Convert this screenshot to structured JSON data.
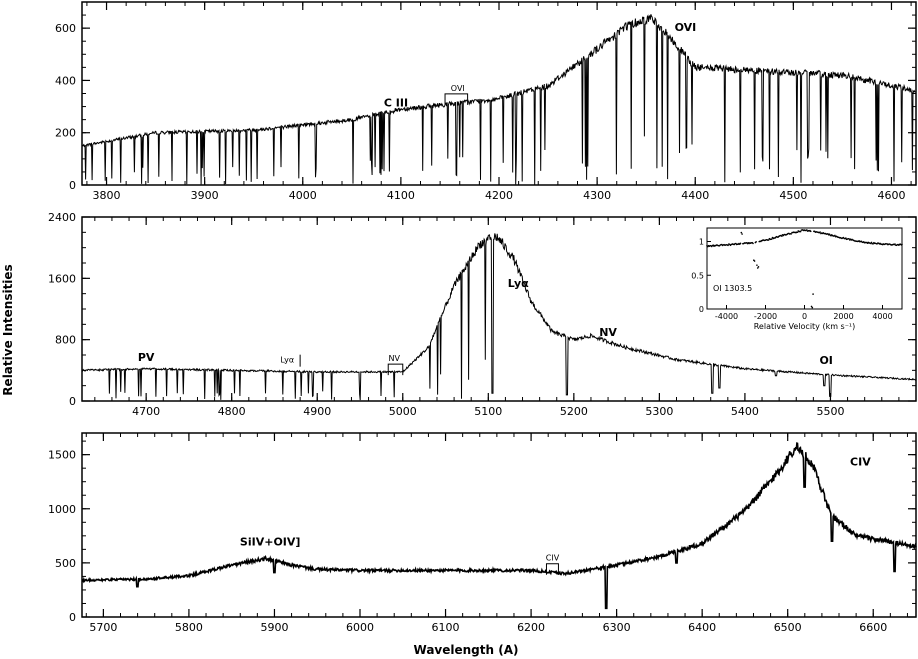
{
  "chart_data": [
    {
      "id": "panel-1",
      "type": "line",
      "xlim": [
        3775,
        4625
      ],
      "ylim": [
        0,
        700
      ],
      "xticks": [
        3800,
        3900,
        4000,
        4100,
        4200,
        4300,
        4400,
        4500,
        4600
      ],
      "yticks": [
        0,
        200,
        400,
        600
      ],
      "grid": false,
      "continuum": [
        [
          3775,
          150
        ],
        [
          3850,
          200
        ],
        [
          3950,
          210
        ],
        [
          4050,
          250
        ],
        [
          4100,
          290
        ],
        [
          4150,
          310
        ],
        [
          4200,
          330
        ],
        [
          4250,
          380
        ],
        [
          4300,
          520
        ],
        [
          4330,
          610
        ],
        [
          4355,
          640
        ],
        [
          4375,
          560
        ],
        [
          4400,
          450
        ],
        [
          4450,
          440
        ],
        [
          4500,
          430
        ],
        [
          4550,
          420
        ],
        [
          4625,
          360
        ]
      ],
      "absorption_density": 0.55,
      "annotations": [
        {
          "text": "C III",
          "x": 4095,
          "y": 300
        },
        {
          "text": "OVI",
          "x": 4158,
          "y": 360,
          "small": true,
          "bracket": [
            4145,
            4168
          ]
        },
        {
          "text": "OVI",
          "x": 4390,
          "y": 590
        }
      ]
    },
    {
      "id": "panel-2",
      "type": "line",
      "xlim": [
        4625,
        5600
      ],
      "ylim": [
        0,
        2400
      ],
      "xticks": [
        4700,
        4800,
        4900,
        5000,
        5100,
        5200,
        5300,
        5400,
        5500
      ],
      "yticks": [
        0,
        800,
        1600,
        2400
      ],
      "grid": false,
      "continuum": [
        [
          4625,
          400
        ],
        [
          4700,
          420
        ],
        [
          4800,
          400
        ],
        [
          4900,
          380
        ],
        [
          5000,
          380
        ],
        [
          5030,
          700
        ],
        [
          5060,
          1500
        ],
        [
          5090,
          2050
        ],
        [
          5110,
          2150
        ],
        [
          5130,
          1850
        ],
        [
          5150,
          1300
        ],
        [
          5175,
          900
        ],
        [
          5200,
          800
        ],
        [
          5220,
          850
        ],
        [
          5260,
          700
        ],
        [
          5320,
          540
        ],
        [
          5400,
          420
        ],
        [
          5500,
          340
        ],
        [
          5600,
          280
        ]
      ],
      "absorption_density": 0.45,
      "absorption_end": 5110,
      "sharp_lines": [
        [
          5105,
          100
        ],
        [
          5192,
          80
        ],
        [
          5362,
          100
        ],
        [
          5370,
          170
        ],
        [
          5436,
          330
        ],
        [
          5493,
          200
        ],
        [
          5500,
          60
        ]
      ],
      "annotations": [
        {
          "text": "PV",
          "x": 4700,
          "y": 520
        },
        {
          "text": "Lyα",
          "x": 4865,
          "y": 500,
          "small": true,
          "marker": 4880
        },
        {
          "text": "NV",
          "x": 4990,
          "y": 520,
          "small": true,
          "bracket": [
            4983,
            5000
          ]
        },
        {
          "text": "Lyα",
          "x": 5135,
          "y": 1490
        },
        {
          "text": "NV",
          "x": 5240,
          "y": 850
        },
        {
          "text": "OI",
          "x": 5495,
          "y": 480
        }
      ],
      "inset": {
        "xlim": [
          -5000,
          5000
        ],
        "ylim": [
          0,
          1.2
        ],
        "xticks": [
          -4000,
          -2000,
          0,
          2000,
          4000
        ],
        "yticks": [
          0,
          0.5,
          1
        ],
        "xlabel": "Relative Velocity (km s⁻¹)",
        "label": "OI 1303.5",
        "profile": [
          [
            -5000,
            0.93
          ],
          [
            -4000,
            0.95
          ],
          [
            -3000,
            0.97
          ],
          [
            -2000,
            1.02
          ],
          [
            -1000,
            1.1
          ],
          [
            0,
            1.17
          ],
          [
            1000,
            1.12
          ],
          [
            2000,
            1.05
          ],
          [
            3000,
            0.99
          ],
          [
            4000,
            0.96
          ],
          [
            5000,
            0.95
          ]
        ],
        "dips": [
          [
            -3200,
            0.9
          ],
          [
            -2600,
            0.7
          ],
          [
            -2400,
            0.6
          ],
          [
            400,
            0.0
          ]
        ]
      }
    },
    {
      "id": "panel-3",
      "type": "line",
      "xlim": [
        5675,
        6650
      ],
      "ylim": [
        0,
        1700
      ],
      "xticks": [
        5700,
        5800,
        5900,
        6000,
        6100,
        6200,
        6300,
        6400,
        6500,
        6600
      ],
      "yticks": [
        0,
        500,
        1000,
        1500
      ],
      "grid": false,
      "continuum": [
        [
          5675,
          340
        ],
        [
          5750,
          350
        ],
        [
          5800,
          380
        ],
        [
          5850,
          480
        ],
        [
          5890,
          540
        ],
        [
          5920,
          480
        ],
        [
          5950,
          440
        ],
        [
          6000,
          430
        ],
        [
          6100,
          430
        ],
        [
          6200,
          430
        ],
        [
          6240,
          400
        ],
        [
          6300,
          480
        ],
        [
          6350,
          560
        ],
        [
          6400,
          680
        ],
        [
          6450,
          980
        ],
        [
          6490,
          1350
        ],
        [
          6510,
          1580
        ],
        [
          6530,
          1400
        ],
        [
          6550,
          950
        ],
        [
          6580,
          750
        ],
        [
          6650,
          650
        ]
      ],
      "sharp_lines": [
        [
          5740,
          280
        ],
        [
          5900,
          410
        ],
        [
          6225,
          420
        ],
        [
          6288,
          80
        ],
        [
          6370,
          500
        ],
        [
          6520,
          1200
        ],
        [
          6552,
          700
        ],
        [
          6625,
          420
        ]
      ],
      "annotations": [
        {
          "text": "SiIV+OIV]",
          "x": 5895,
          "y": 660
        },
        {
          "text": "CIV",
          "x": 6225,
          "y": 520,
          "small": true,
          "bracket": [
            6218,
            6232
          ]
        },
        {
          "text": "CIV",
          "x": 6585,
          "y": 1400
        }
      ]
    }
  ],
  "axes": {
    "ylabel": "Relative Intensities",
    "xlabel": "Wavelength (A)"
  }
}
